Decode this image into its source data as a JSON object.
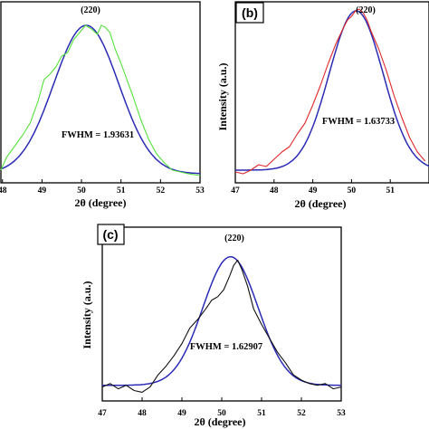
{
  "chart_data": [
    {
      "type": "line",
      "panel_label": "",
      "peak_label": "(220)",
      "fwhm_label": "FWHM = 1.93631",
      "xlabel": "2θ (degree)",
      "ylabel": "",
      "xlim": [
        48,
        53
      ],
      "ylim": [
        0,
        1
      ],
      "x_ticks": [
        "48",
        "49",
        "50",
        "51",
        "52",
        "53"
      ],
      "colors": {
        "data": "#55e23a",
        "fit": "#2b2bb5"
      },
      "fit": {
        "center": 50.12,
        "fwhm": 1.93631,
        "baseline": 0.05,
        "amplitude": 0.82
      },
      "series": [
        {
          "kind": "data",
          "values": [
            [
              47.96,
              0.07
            ],
            [
              48.1,
              0.14
            ],
            [
              48.3,
              0.2
            ],
            [
              48.5,
              0.26
            ],
            [
              48.7,
              0.33
            ],
            [
              48.9,
              0.45
            ],
            [
              49.05,
              0.57
            ],
            [
              49.2,
              0.6
            ],
            [
              49.35,
              0.64
            ],
            [
              49.5,
              0.7
            ],
            [
              49.65,
              0.72
            ],
            [
              49.8,
              0.79
            ],
            [
              49.95,
              0.83
            ],
            [
              50.1,
              0.87
            ],
            [
              50.25,
              0.85
            ],
            [
              50.4,
              0.82
            ],
            [
              50.5,
              0.87
            ],
            [
              50.6,
              0.86
            ],
            [
              50.72,
              0.83
            ],
            [
              50.85,
              0.74
            ],
            [
              51.0,
              0.66
            ],
            [
              51.15,
              0.57
            ],
            [
              51.3,
              0.48
            ],
            [
              51.5,
              0.35
            ],
            [
              51.7,
              0.24
            ],
            [
              51.9,
              0.16
            ],
            [
              52.1,
              0.11
            ],
            [
              52.3,
              0.07
            ],
            [
              52.5,
              0.06
            ],
            [
              52.7,
              0.05
            ],
            [
              53.0,
              0.04
            ]
          ]
        }
      ]
    },
    {
      "type": "line",
      "panel_label": "(b)",
      "peak_label": "(220)",
      "fwhm_label": "FWHM = 1.63733",
      "xlabel": "2θ (degree)",
      "ylabel": "Intensity (a.u.)",
      "xlim": [
        47,
        52
      ],
      "ylim": [
        0,
        1
      ],
      "x_ticks": [
        "47",
        "48",
        "49",
        "50",
        "51"
      ],
      "colors": {
        "data": "#e0282b",
        "fit": "#2b2bb5"
      },
      "fit": {
        "center": 50.12,
        "fwhm": 1.63733,
        "baseline": 0.07,
        "amplitude": 0.88
      },
      "series": [
        {
          "kind": "data",
          "values": [
            [
              47.0,
              0.06
            ],
            [
              47.2,
              0.05
            ],
            [
              47.4,
              0.07
            ],
            [
              47.6,
              0.1
            ],
            [
              47.8,
              0.09
            ],
            [
              48.0,
              0.13
            ],
            [
              48.2,
              0.17
            ],
            [
              48.4,
              0.2
            ],
            [
              48.6,
              0.27
            ],
            [
              48.8,
              0.33
            ],
            [
              49.0,
              0.43
            ],
            [
              49.2,
              0.54
            ],
            [
              49.4,
              0.66
            ],
            [
              49.6,
              0.77
            ],
            [
              49.8,
              0.86
            ],
            [
              49.9,
              0.9
            ],
            [
              50.0,
              0.92
            ],
            [
              50.1,
              0.95
            ],
            [
              50.2,
              0.96
            ],
            [
              50.3,
              0.94
            ],
            [
              50.4,
              0.9
            ],
            [
              50.5,
              0.84
            ],
            [
              50.7,
              0.74
            ],
            [
              50.9,
              0.62
            ],
            [
              51.1,
              0.48
            ],
            [
              51.3,
              0.36
            ],
            [
              51.5,
              0.25
            ],
            [
              51.7,
              0.17
            ],
            [
              51.9,
              0.12
            ]
          ]
        }
      ]
    },
    {
      "type": "line",
      "panel_label": "(c)",
      "peak_label": "(220)",
      "fwhm_label": "FWHM = 1.62907",
      "xlabel": "2θ (degree)",
      "ylabel": "Intensity (a.u.)",
      "xlim": [
        47,
        53
      ],
      "ylim": [
        0,
        1
      ],
      "x_ticks": [
        "47",
        "48",
        "49",
        "50",
        "51",
        "52",
        "53"
      ],
      "colors": {
        "data": "#111111",
        "fit": "#2b2bb5"
      },
      "fit": {
        "center": 50.22,
        "fwhm": 1.62907,
        "baseline": 0.09,
        "amplitude": 0.74
      },
      "series": [
        {
          "kind": "data",
          "values": [
            [
              47.0,
              0.08
            ],
            [
              47.2,
              0.1
            ],
            [
              47.4,
              0.07
            ],
            [
              47.6,
              0.09
            ],
            [
              47.8,
              0.06
            ],
            [
              48.0,
              0.05
            ],
            [
              48.2,
              0.08
            ],
            [
              48.4,
              0.15
            ],
            [
              48.6,
              0.2
            ],
            [
              48.8,
              0.26
            ],
            [
              49.0,
              0.33
            ],
            [
              49.2,
              0.42
            ],
            [
              49.4,
              0.47
            ],
            [
              49.6,
              0.53
            ],
            [
              49.75,
              0.58
            ],
            [
              49.9,
              0.6
            ],
            [
              50.05,
              0.64
            ],
            [
              50.2,
              0.72
            ],
            [
              50.3,
              0.78
            ],
            [
              50.4,
              0.81
            ],
            [
              50.5,
              0.76
            ],
            [
              50.65,
              0.66
            ],
            [
              50.8,
              0.53
            ],
            [
              51.0,
              0.44
            ],
            [
              51.2,
              0.36
            ],
            [
              51.4,
              0.28
            ],
            [
              51.6,
              0.22
            ],
            [
              51.8,
              0.15
            ],
            [
              52.0,
              0.12
            ],
            [
              52.2,
              0.1
            ],
            [
              52.4,
              0.09
            ],
            [
              52.6,
              0.1
            ],
            [
              52.8,
              0.07
            ],
            [
              53.0,
              0.08
            ]
          ]
        }
      ]
    }
  ]
}
